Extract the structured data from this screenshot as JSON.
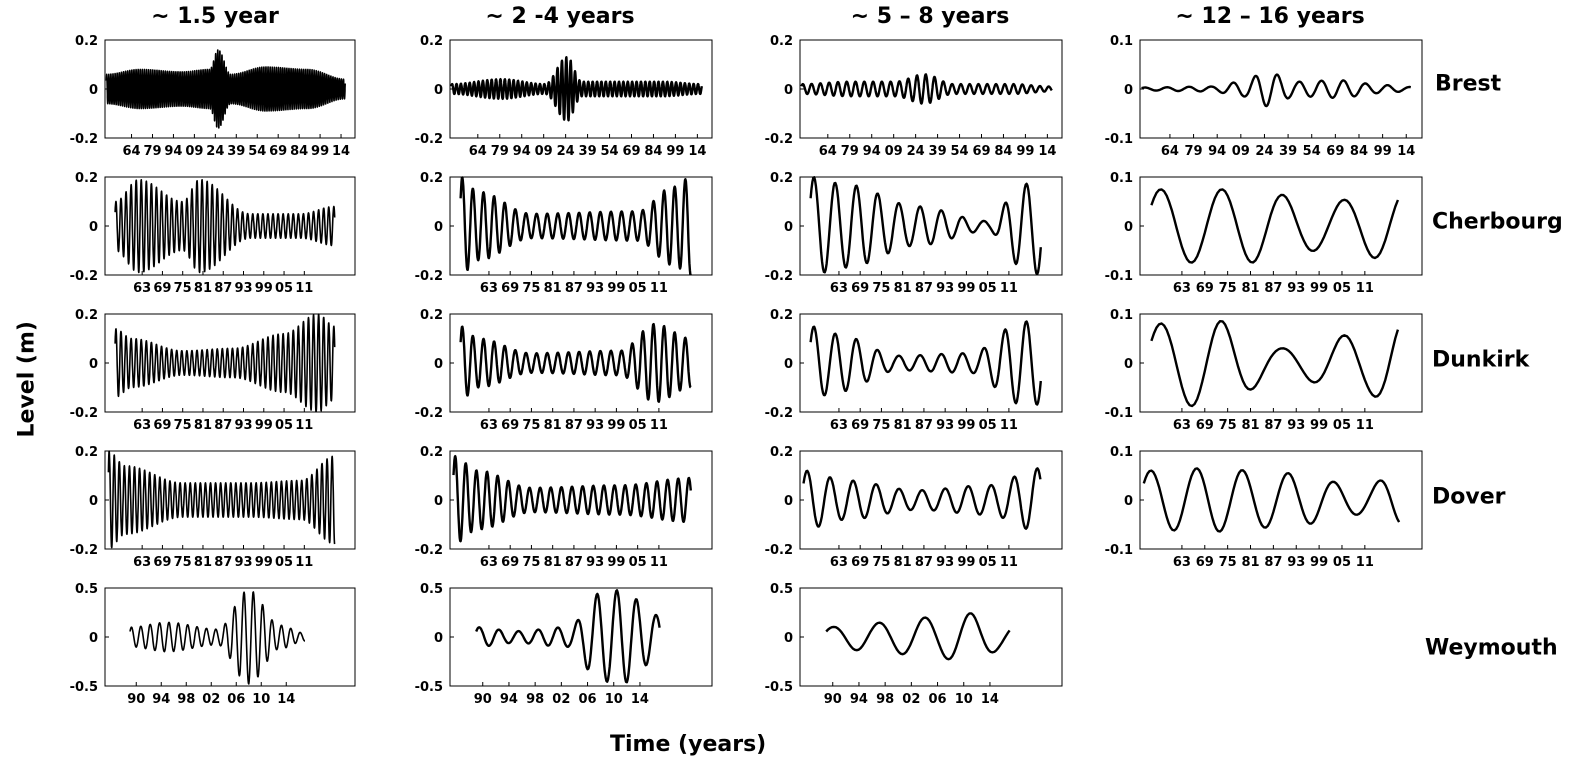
{
  "chart_data": {
    "type": "line",
    "xlabel": "Time (years)",
    "ylabel": "Level (m)",
    "columns": [
      "~ 1.5 year",
      "~ 2 -4 years",
      "~ 5 – 8 years",
      "~ 12 – 16 years"
    ],
    "rows": [
      "Brest",
      "Cherbourg",
      "Dunkirk",
      "Dover",
      "Weymouth"
    ],
    "axes": {
      "Brest": {
        "xrange": [
          1845,
          2024
        ],
        "xticks": [
          1864,
          1879,
          1894,
          1909,
          1924,
          1939,
          1954,
          1969,
          1984,
          1999,
          2014
        ],
        "xtick_labels": [
          "64",
          "79",
          "94",
          "09",
          "24",
          "39",
          "54",
          "69",
          "84",
          "99",
          "14"
        ],
        "data_xrange": [
          1846,
          2017
        ]
      },
      "Cherbourg": {
        "xrange": [
          1952,
          2026
        ],
        "xticks": [
          1963,
          1969,
          1975,
          1981,
          1987,
          1993,
          1999,
          2005,
          2011
        ],
        "xtick_labels": [
          "63",
          "69",
          "75",
          "81",
          "87",
          "93",
          "99",
          "05",
          "11"
        ],
        "data_xrange": [
          1955,
          2020
        ]
      },
      "Dunkirk": {
        "xrange": [
          1952,
          2026
        ],
        "xticks": [
          1963,
          1969,
          1975,
          1981,
          1987,
          1993,
          1999,
          2005,
          2011
        ],
        "xtick_labels": [
          "63",
          "69",
          "75",
          "81",
          "87",
          "93",
          "99",
          "05",
          "11"
        ],
        "data_xrange": [
          1955,
          2020
        ]
      },
      "Dover": {
        "xrange": [
          1952,
          2026
        ],
        "xticks": [
          1963,
          1969,
          1975,
          1981,
          1987,
          1993,
          1999,
          2005,
          2011
        ],
        "xtick_labels": [
          "63",
          "69",
          "75",
          "81",
          "87",
          "93",
          "99",
          "05",
          "11"
        ],
        "data_xrange": [
          1953,
          2020
        ]
      },
      "Weymouth": {
        "xrange": [
          1985,
          2025
        ],
        "xticks": [
          1990,
          1994,
          1998,
          2002,
          2006,
          2010,
          2014
        ],
        "xtick_labels": [
          "90",
          "94",
          "98",
          "02",
          "06",
          "10",
          "14"
        ],
        "data_xrange": [
          1989,
          2017
        ]
      }
    },
    "panels": [
      {
        "row": "Brest",
        "col": 0,
        "ylim": [
          -0.2,
          0.2
        ],
        "yticks": [
          -0.2,
          0,
          0.2
        ],
        "ytick_labels": [
          "-0.2",
          "0",
          "0.2"
        ],
        "period_years": 1.5,
        "x": [
          1846,
          1870,
          1900,
          1920,
          1926,
          1935,
          1960,
          1990,
          2017
        ],
        "amp": [
          0.06,
          0.08,
          0.07,
          0.08,
          0.16,
          0.06,
          0.09,
          0.08,
          0.04
        ]
      },
      {
        "row": "Brest",
        "col": 1,
        "ylim": [
          -0.2,
          0.2
        ],
        "yticks": [
          -0.2,
          0,
          0.2
        ],
        "ytick_labels": [
          "-0.2",
          "0",
          "0.2"
        ],
        "period_years": 3,
        "x": [
          1846,
          1880,
          1910,
          1925,
          1935,
          1960,
          1990,
          2017
        ],
        "amp": [
          0.02,
          0.04,
          0.02,
          0.13,
          0.03,
          0.03,
          0.03,
          0.02
        ]
      },
      {
        "row": "Brest",
        "col": 2,
        "ylim": [
          -0.2,
          0.2
        ],
        "yticks": [
          -0.2,
          0,
          0.2
        ],
        "ytick_labels": [
          "-0.2",
          "0",
          "0.2"
        ],
        "period_years": 6,
        "x": [
          1846,
          1880,
          1910,
          1930,
          1950,
          1990,
          2017
        ],
        "amp": [
          0.02,
          0.03,
          0.03,
          0.06,
          0.02,
          0.02,
          0.01
        ]
      },
      {
        "row": "Brest",
        "col": 3,
        "ylim": [
          -0.1,
          0.1
        ],
        "yticks": [
          -0.1,
          0,
          0.1
        ],
        "ytick_labels": [
          "-0.1",
          "0",
          "0.1"
        ],
        "period_years": 14,
        "x": [
          1846,
          1890,
          1910,
          1925,
          1945,
          1970,
          2000,
          2017
        ],
        "amp": [
          0.003,
          0.005,
          0.015,
          0.035,
          0.015,
          0.018,
          0.008,
          0.004
        ]
      },
      {
        "row": "Cherbourg",
        "col": 0,
        "ylim": [
          -0.2,
          0.2
        ],
        "yticks": [
          -0.2,
          0,
          0.2
        ],
        "ytick_labels": [
          "-0.2",
          "0",
          "0.2"
        ],
        "period_years": 1.5,
        "x": [
          1955,
          1962,
          1975,
          1980,
          1995,
          2010,
          2020
        ],
        "amp": [
          0.1,
          0.19,
          0.1,
          0.19,
          0.05,
          0.05,
          0.08
        ]
      },
      {
        "row": "Cherbourg",
        "col": 1,
        "ylim": [
          -0.2,
          0.2
        ],
        "yticks": [
          -0.2,
          0,
          0.2
        ],
        "ytick_labels": [
          "-0.2",
          "0",
          "0.2"
        ],
        "period_years": 3,
        "x": [
          1955,
          1960,
          1975,
          2005,
          2015,
          2020
        ],
        "amp": [
          0.2,
          0.14,
          0.05,
          0.06,
          0.16,
          0.2
        ]
      },
      {
        "row": "Cherbourg",
        "col": 2,
        "ylim": [
          -0.2,
          0.2
        ],
        "yticks": [
          -0.2,
          0,
          0.2
        ],
        "ytick_labels": [
          "-0.2",
          "0",
          "0.2"
        ],
        "period_years": 6,
        "x": [
          1955,
          1965,
          1985,
          2005,
          2015,
          2020
        ],
        "amp": [
          0.2,
          0.17,
          0.08,
          0.02,
          0.17,
          0.2
        ]
      },
      {
        "row": "Cherbourg",
        "col": 3,
        "ylim": [
          -0.1,
          0.1
        ],
        "yticks": [
          -0.1,
          0,
          0.1
        ],
        "ytick_labels": [
          "-0.1",
          "0",
          "0.1"
        ],
        "period_years": 16,
        "x": [
          1955,
          1980,
          2000,
          2020
        ],
        "amp": [
          0.075,
          0.075,
          0.05,
          0.07
        ]
      },
      {
        "row": "Dunkirk",
        "col": 0,
        "ylim": [
          -0.2,
          0.2
        ],
        "yticks": [
          -0.2,
          0,
          0.2
        ],
        "ytick_labels": [
          "-0.2",
          "0",
          "0.2"
        ],
        "period_years": 1.5,
        "x": [
          1955,
          1960,
          1975,
          1990,
          2005,
          2015,
          2020
        ],
        "amp": [
          0.14,
          0.1,
          0.05,
          0.06,
          0.12,
          0.2,
          0.15
        ]
      },
      {
        "row": "Dunkirk",
        "col": 1,
        "ylim": [
          -0.2,
          0.2
        ],
        "yticks": [
          -0.2,
          0,
          0.2
        ],
        "ytick_labels": [
          "-0.2",
          "0",
          "0.2"
        ],
        "period_years": 3,
        "x": [
          1955,
          1960,
          1975,
          2000,
          2010,
          2020
        ],
        "amp": [
          0.15,
          0.1,
          0.04,
          0.05,
          0.16,
          0.1
        ]
      },
      {
        "row": "Dunkirk",
        "col": 2,
        "ylim": [
          -0.2,
          0.2
        ],
        "yticks": [
          -0.2,
          0,
          0.2
        ],
        "ytick_labels": [
          "-0.2",
          "0",
          "0.2"
        ],
        "period_years": 6,
        "x": [
          1955,
          1962,
          1980,
          2000,
          2015,
          2020
        ],
        "amp": [
          0.15,
          0.12,
          0.03,
          0.04,
          0.17,
          0.17
        ]
      },
      {
        "row": "Dunkirk",
        "col": 3,
        "ylim": [
          -0.1,
          0.1
        ],
        "yticks": [
          -0.1,
          0,
          0.1
        ],
        "ytick_labels": [
          "-0.1",
          "0",
          "0.1"
        ],
        "period_years": 16,
        "x": [
          1955,
          1970,
          1990,
          2010,
          2020
        ],
        "amp": [
          0.08,
          0.09,
          0.03,
          0.06,
          0.09
        ]
      },
      {
        "row": "Dover",
        "col": 0,
        "ylim": [
          -0.2,
          0.2
        ],
        "yticks": [
          -0.2,
          0,
          0.2
        ],
        "ytick_labels": [
          "-0.2",
          "0",
          "0.2"
        ],
        "period_years": 1.5,
        "x": [
          1953,
          1958,
          1975,
          1995,
          2010,
          2020
        ],
        "amp": [
          0.2,
          0.14,
          0.07,
          0.07,
          0.08,
          0.18
        ]
      },
      {
        "row": "Dover",
        "col": 1,
        "ylim": [
          -0.2,
          0.2
        ],
        "yticks": [
          -0.2,
          0,
          0.2
        ],
        "ytick_labels": [
          "-0.2",
          "0",
          "0.2"
        ],
        "period_years": 3,
        "x": [
          1953,
          1960,
          1975,
          2000,
          2020
        ],
        "amp": [
          0.18,
          0.12,
          0.05,
          0.06,
          0.09
        ]
      },
      {
        "row": "Dover",
        "col": 2,
        "ylim": [
          -0.2,
          0.2
        ],
        "yticks": [
          -0.2,
          0,
          0.2
        ],
        "ytick_labels": [
          "-0.2",
          "0",
          "0.2"
        ],
        "period_years": 6.5,
        "x": [
          1953,
          1965,
          1985,
          2005,
          2020
        ],
        "amp": [
          0.12,
          0.08,
          0.04,
          0.06,
          0.13
        ]
      },
      {
        "row": "Dover",
        "col": 3,
        "ylim": [
          -0.1,
          0.1
        ],
        "yticks": [
          -0.1,
          0,
          0.1
        ],
        "ytick_labels": [
          "-0.1",
          "0",
          "0.1"
        ],
        "period_years": 12,
        "x": [
          1953,
          1970,
          1990,
          2010,
          2020
        ],
        "amp": [
          0.06,
          0.065,
          0.055,
          0.03,
          0.05
        ]
      },
      {
        "row": "Weymouth",
        "col": 0,
        "ylim": [
          -0.5,
          0.5
        ],
        "yticks": [
          -0.5,
          0,
          0.5
        ],
        "ytick_labels": [
          "-0.5",
          "0",
          "0.5"
        ],
        "period_years": 1.5,
        "x": [
          1989,
          1995,
          2003,
          2008,
          2013,
          2017
        ],
        "amp": [
          0.1,
          0.15,
          0.08,
          0.48,
          0.12,
          0.04
        ]
      },
      {
        "row": "Weymouth",
        "col": 1,
        "ylim": [
          -0.5,
          0.5
        ],
        "yticks": [
          -0.5,
          0,
          0.5
        ],
        "ytick_labels": [
          "-0.5",
          "0",
          "0.5"
        ],
        "period_years": 3,
        "x": [
          1989,
          1995,
          2003,
          2008,
          2011,
          2017
        ],
        "amp": [
          0.1,
          0.06,
          0.1,
          0.45,
          0.48,
          0.22
        ]
      },
      {
        "row": "Weymouth",
        "col": 2,
        "ylim": [
          -0.5,
          0.5
        ],
        "yticks": [
          -0.5,
          0,
          0.5
        ],
        "ytick_labels": [
          "-0.5",
          "0",
          "0.5"
        ],
        "period_years": 7,
        "x": [
          1989,
          1995,
          2005,
          2010,
          2017
        ],
        "amp": [
          0.1,
          0.14,
          0.2,
          0.25,
          0.12
        ]
      }
    ]
  }
}
